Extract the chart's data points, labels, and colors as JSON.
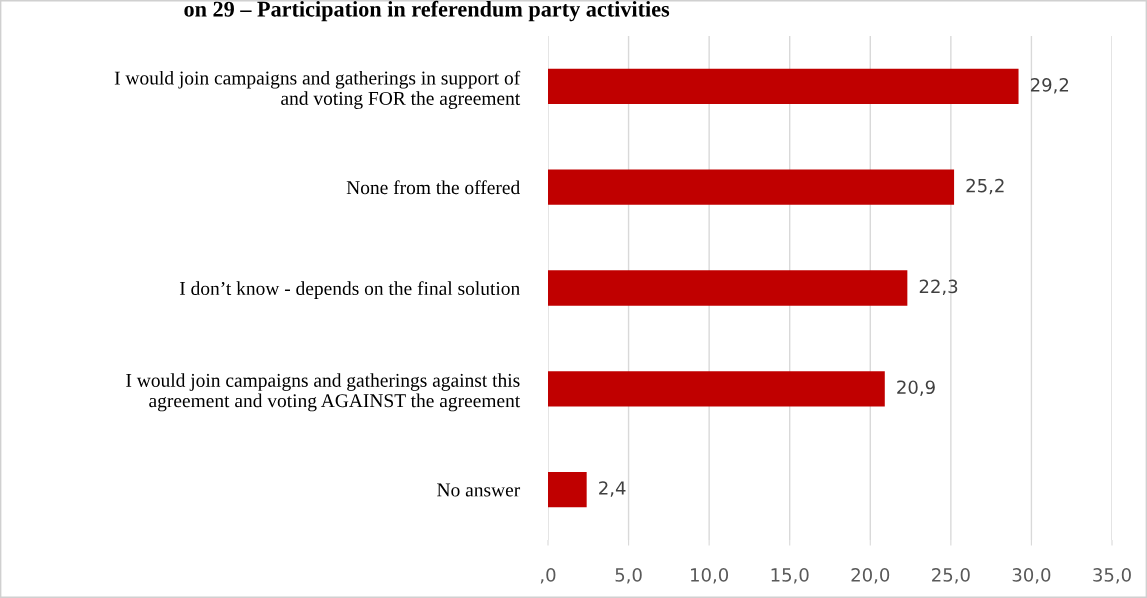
{
  "chart_data": {
    "type": "bar",
    "orientation": "horizontal",
    "title": "on 29 – Participation in referendum party activities",
    "categories": [
      "I would join campaigns and gatherings in support of\nand voting FOR the agreement",
      "None from the offered",
      "I don’t know - depends on the final solution",
      "I would join campaigns and gatherings against this\nagreement and voting AGAINST the agreement",
      "No answer"
    ],
    "values": [
      29.2,
      25.2,
      22.3,
      20.9,
      2.4
    ],
    "value_labels": [
      "29,2",
      "25,2",
      "22,3",
      "20,9",
      "2,4"
    ],
    "color": "#c00000",
    "xlim": [
      0,
      35
    ],
    "xticks": [
      {
        "value": 0,
        "label": ",0"
      },
      {
        "value": 5,
        "label": "5,0"
      },
      {
        "value": 10,
        "label": "10,0"
      },
      {
        "value": 15,
        "label": "15,0"
      },
      {
        "value": 20,
        "label": "20,0"
      },
      {
        "value": 25,
        "label": "25,0"
      },
      {
        "value": 30,
        "label": "30,0"
      },
      {
        "value": 35,
        "label": "35,0"
      }
    ],
    "grid": "x"
  }
}
